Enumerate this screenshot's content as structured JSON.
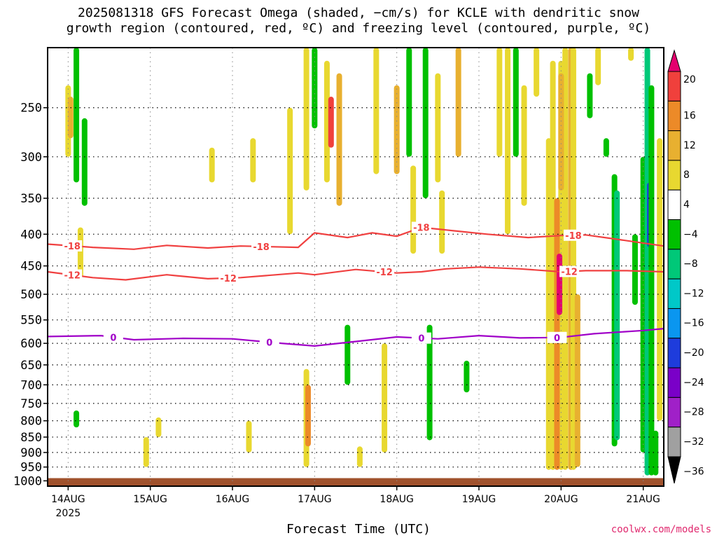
{
  "title": {
    "line1": "2025081318 GFS Forecast Omega (shaded, −cm/s) for KCLE with dendritic snow",
    "line2": "growth region (contoured, red, ºC) and freezing level (contoured, purple, ºC)"
  },
  "credit": "coolwx.com/models",
  "chart_data": {
    "type": "heatmap",
    "xlabel": "Forecast Time (UTC)",
    "ylabel": "",
    "x_ticks": [
      "14AUG",
      "15AUG",
      "16AUG",
      "17AUG",
      "18AUG",
      "19AUG",
      "20AUG",
      "21AUG"
    ],
    "x_sublabel": "2025",
    "x_range_days": [
      -0.25,
      7.25
    ],
    "y_ticks": [
      250,
      300,
      350,
      400,
      450,
      500,
      550,
      600,
      650,
      700,
      750,
      800,
      850,
      900,
      950,
      1000
    ],
    "y_range_hpa": [
      200,
      1020
    ],
    "y_scale": "log-pressure",
    "grid": true,
    "colorbar": {
      "labels": [
        "20",
        "16",
        "12",
        "8",
        "4",
        "−4",
        "−8",
        "−12",
        "−16",
        "−20",
        "−24",
        "−28",
        "−32",
        "−36"
      ],
      "colors": [
        "#e4006e",
        "#f0403c",
        "#ec8a28",
        "#e8b030",
        "#e8d830",
        "#ffffff",
        "#00c000",
        "#00c878",
        "#00c8c8",
        "#0a96f0",
        "#1e3cdc",
        "#7a00c8",
        "#a020c8",
        "#a0a0a0",
        "#000000"
      ]
    },
    "contours": [
      {
        "label": "-18",
        "color": "#f04040",
        "points": [
          [
            -0.25,
            415
          ],
          [
            0.3,
            420
          ],
          [
            0.8,
            423
          ],
          [
            1.2,
            417
          ],
          [
            1.7,
            421
          ],
          [
            2.1,
            418
          ],
          [
            2.8,
            420
          ],
          [
            3.0,
            398
          ],
          [
            3.4,
            405
          ],
          [
            3.7,
            398
          ],
          [
            4.0,
            403
          ],
          [
            4.3,
            390
          ],
          [
            4.7,
            395
          ],
          [
            5.1,
            400
          ],
          [
            5.6,
            405
          ],
          [
            6.0,
            402
          ],
          [
            6.3,
            401
          ],
          [
            6.7,
            408
          ],
          [
            7.25,
            418
          ]
        ],
        "label_x": [
          0.05,
          2.35,
          4.3,
          6.15
        ]
      },
      {
        "label": "-12",
        "color": "#f04040",
        "points": [
          [
            -0.25,
            460
          ],
          [
            0.3,
            470
          ],
          [
            0.7,
            474
          ],
          [
            1.2,
            465
          ],
          [
            1.7,
            472
          ],
          [
            2.1,
            470
          ],
          [
            2.8,
            462
          ],
          [
            3.0,
            465
          ],
          [
            3.5,
            456
          ],
          [
            4.0,
            462
          ],
          [
            4.3,
            460
          ],
          [
            4.6,
            455
          ],
          [
            5.0,
            452
          ],
          [
            5.5,
            455
          ],
          [
            6.0,
            460
          ],
          [
            6.3,
            458
          ],
          [
            6.8,
            458
          ],
          [
            7.25,
            460
          ]
        ],
        "label_x": [
          0.05,
          1.95,
          3.85,
          6.1
        ]
      },
      {
        "label": "0",
        "color": "#a000c8",
        "points": [
          [
            -0.25,
            585
          ],
          [
            0.4,
            583
          ],
          [
            0.8,
            592
          ],
          [
            1.4,
            589
          ],
          [
            2.0,
            590
          ],
          [
            2.6,
            600
          ],
          [
            3.0,
            606
          ],
          [
            3.5,
            596
          ],
          [
            4.0,
            586
          ],
          [
            4.5,
            590
          ],
          [
            5.0,
            583
          ],
          [
            5.5,
            588
          ],
          [
            6.0,
            587
          ],
          [
            6.4,
            579
          ],
          [
            7.0,
            572
          ],
          [
            7.25,
            568
          ]
        ],
        "label_x": [
          0.55,
          2.45,
          4.3,
          5.95
        ]
      }
    ],
    "omega_cells": [
      {
        "t": 0.0,
        "p1": 230,
        "p2": 300,
        "c": "#e8d830"
      },
      {
        "t": 0.03,
        "p1": 240,
        "p2": 280,
        "c": "#e8b030"
      },
      {
        "t": 0.1,
        "p1": 200,
        "p2": 330,
        "c": "#00c000"
      },
      {
        "t": 0.2,
        "p1": 260,
        "p2": 360,
        "c": "#00c000"
      },
      {
        "t": 0.15,
        "p1": 390,
        "p2": 470,
        "c": "#e8d830"
      },
      {
        "t": 0.1,
        "p1": 770,
        "p2": 820,
        "c": "#00c000"
      },
      {
        "t": 0.95,
        "p1": 850,
        "p2": 950,
        "c": "#e8d830"
      },
      {
        "t": 1.1,
        "p1": 790,
        "p2": 850,
        "c": "#e8d830"
      },
      {
        "t": 1.75,
        "p1": 290,
        "p2": 330,
        "c": "#e8d830"
      },
      {
        "t": 2.2,
        "p1": 800,
        "p2": 900,
        "c": "#e8d830"
      },
      {
        "t": 2.25,
        "p1": 280,
        "p2": 330,
        "c": "#e8d830"
      },
      {
        "t": 2.7,
        "p1": 250,
        "p2": 400,
        "c": "#e8d830"
      },
      {
        "t": 2.9,
        "p1": 200,
        "p2": 340,
        "c": "#e8d830"
      },
      {
        "t": 2.9,
        "p1": 660,
        "p2": 950,
        "c": "#e8d830"
      },
      {
        "t": 2.92,
        "p1": 700,
        "p2": 880,
        "c": "#ec8a28"
      },
      {
        "t": 3.0,
        "p1": 200,
        "p2": 270,
        "c": "#00c000"
      },
      {
        "t": 3.15,
        "p1": 210,
        "p2": 330,
        "c": "#e8d830"
      },
      {
        "t": 3.2,
        "p1": 240,
        "p2": 290,
        "c": "#f0403c"
      },
      {
        "t": 3.3,
        "p1": 220,
        "p2": 360,
        "c": "#e8b030"
      },
      {
        "t": 3.4,
        "p1": 560,
        "p2": 700,
        "c": "#00c000"
      },
      {
        "t": 3.55,
        "p1": 880,
        "p2": 950,
        "c": "#e8d830"
      },
      {
        "t": 3.75,
        "p1": 200,
        "p2": 320,
        "c": "#e8d830"
      },
      {
        "t": 3.85,
        "p1": 600,
        "p2": 900,
        "c": "#e8d830"
      },
      {
        "t": 4.0,
        "p1": 230,
        "p2": 320,
        "c": "#e8b030"
      },
      {
        "t": 4.15,
        "p1": 200,
        "p2": 300,
        "c": "#00c000"
      },
      {
        "t": 4.2,
        "p1": 310,
        "p2": 430,
        "c": "#e8d830"
      },
      {
        "t": 4.35,
        "p1": 200,
        "p2": 350,
        "c": "#00c000"
      },
      {
        "t": 4.4,
        "p1": 560,
        "p2": 860,
        "c": "#00c000"
      },
      {
        "t": 4.5,
        "p1": 220,
        "p2": 330,
        "c": "#e8d830"
      },
      {
        "t": 4.55,
        "p1": 340,
        "p2": 430,
        "c": "#e8d830"
      },
      {
        "t": 4.75,
        "p1": 200,
        "p2": 300,
        "c": "#e8b030"
      },
      {
        "t": 4.85,
        "p1": 640,
        "p2": 720,
        "c": "#00c000"
      },
      {
        "t": 5.25,
        "p1": 200,
        "p2": 300,
        "c": "#e8d830"
      },
      {
        "t": 5.35,
        "p1": 200,
        "p2": 400,
        "c": "#e8d830"
      },
      {
        "t": 5.45,
        "p1": 200,
        "p2": 300,
        "c": "#00c000"
      },
      {
        "t": 5.55,
        "p1": 230,
        "p2": 360,
        "c": "#e8d830"
      },
      {
        "t": 5.7,
        "p1": 200,
        "p2": 240,
        "c": "#e8d830"
      },
      {
        "t": 5.85,
        "p1": 280,
        "p2": 960,
        "c": "#e8d830"
      },
      {
        "t": 5.9,
        "p1": 210,
        "p2": 960,
        "c": "#e8d830"
      },
      {
        "t": 6.0,
        "p1": 210,
        "p2": 960,
        "c": "#e8d830"
      },
      {
        "t": 6.05,
        "p1": 200,
        "p2": 960,
        "c": "#e8d830"
      },
      {
        "t": 5.95,
        "p1": 350,
        "p2": 960,
        "c": "#ec8a28"
      },
      {
        "t": 6.0,
        "p1": 220,
        "p2": 340,
        "c": "#e8b030"
      },
      {
        "t": 5.98,
        "p1": 430,
        "p2": 540,
        "c": "#e4006e"
      },
      {
        "t": 6.12,
        "p1": 200,
        "p2": 960,
        "c": "#e8b030"
      },
      {
        "t": 6.15,
        "p1": 200,
        "p2": 960,
        "c": "#e8d830"
      },
      {
        "t": 6.2,
        "p1": 500,
        "p2": 950,
        "c": "#e8b030"
      },
      {
        "t": 6.35,
        "p1": 220,
        "p2": 260,
        "c": "#00c000"
      },
      {
        "t": 6.45,
        "p1": 200,
        "p2": 230,
        "c": "#e8d830"
      },
      {
        "t": 6.55,
        "p1": 280,
        "p2": 300,
        "c": "#00c000"
      },
      {
        "t": 6.65,
        "p1": 320,
        "p2": 880,
        "c": "#00c000"
      },
      {
        "t": 6.68,
        "p1": 340,
        "p2": 860,
        "c": "#00c878"
      },
      {
        "t": 6.85,
        "p1": 200,
        "p2": 210,
        "c": "#e8d830"
      },
      {
        "t": 6.9,
        "p1": 400,
        "p2": 520,
        "c": "#00c000"
      },
      {
        "t": 7.0,
        "p1": 300,
        "p2": 900,
        "c": "#00c000"
      },
      {
        "t": 7.05,
        "p1": 200,
        "p2": 980,
        "c": "#00c878"
      },
      {
        "t": 7.08,
        "p1": 330,
        "p2": 420,
        "c": "#1e3cdc"
      },
      {
        "t": 7.1,
        "p1": 230,
        "p2": 980,
        "c": "#00c000"
      },
      {
        "t": 7.15,
        "p1": 830,
        "p2": 980,
        "c": "#00c000"
      },
      {
        "t": 7.2,
        "p1": 280,
        "p2": 800,
        "c": "#e8d830"
      }
    ]
  }
}
